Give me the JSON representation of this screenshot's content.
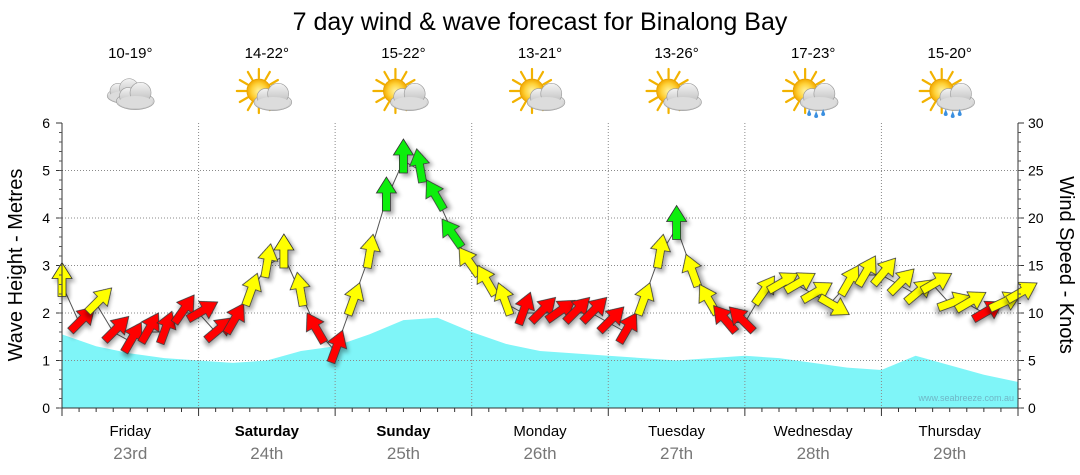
{
  "chart_data": {
    "type": "line",
    "title": "7 day wind & wave forecast for Binalong Bay",
    "y_left_label": "Wave Height - Metres",
    "y_right_label": "Wind Speed - Knots",
    "y_left_range": [
      0,
      6
    ],
    "y_right_range": [
      0,
      30
    ],
    "y_left_ticks": [
      "0",
      "1",
      "2",
      "3",
      "4",
      "5",
      "6"
    ],
    "y_right_ticks": [
      "0",
      "5",
      "10",
      "15",
      "20",
      "25",
      "30"
    ],
    "x_range_hours": [
      0,
      168
    ],
    "grid": true,
    "watermark": "www.seabreeze.com.au",
    "days": [
      {
        "name": "Friday",
        "date": "23rd",
        "temp": "10-19°",
        "icon": "cloudy-icon",
        "bold": false
      },
      {
        "name": "Saturday",
        "date": "24th",
        "temp": "14-22°",
        "icon": "sun-cloud-icon",
        "bold": true
      },
      {
        "name": "Sunday",
        "date": "25th",
        "temp": "15-22°",
        "icon": "sun-cloud-icon",
        "bold": true
      },
      {
        "name": "Monday",
        "date": "26th",
        "temp": "13-21°",
        "icon": "sun-cloud-icon",
        "bold": false
      },
      {
        "name": "Tuesday",
        "date": "27th",
        "temp": "13-26°",
        "icon": "sun-cloud-icon",
        "bold": false
      },
      {
        "name": "Wednesday",
        "date": "28th",
        "temp": "17-23°",
        "icon": "sun-rain-cloud-icon",
        "bold": false
      },
      {
        "name": "Thursday",
        "date": "29th",
        "temp": "15-20°",
        "icon": "sun-rain-cloud-icon",
        "bold": false
      }
    ],
    "wave_series": {
      "name": "Wave Height",
      "color": "#7ff5f8",
      "x_hours": [
        0,
        6,
        12,
        18,
        24,
        30,
        36,
        42,
        48,
        54,
        60,
        66,
        72,
        78,
        84,
        90,
        96,
        102,
        108,
        114,
        120,
        126,
        132,
        138,
        144,
        150,
        156,
        162,
        168
      ],
      "values": [
        1.55,
        1.3,
        1.15,
        1.05,
        1.0,
        0.95,
        1.0,
        1.2,
        1.3,
        1.55,
        1.85,
        1.9,
        1.6,
        1.35,
        1.2,
        1.15,
        1.1,
        1.05,
        1.0,
        1.05,
        1.1,
        1.05,
        0.95,
        0.85,
        0.8,
        1.1,
        0.9,
        0.7,
        0.55
      ]
    },
    "wind_series": {
      "name": "Wind Speed",
      "line_color": "#555555",
      "x_hours": [
        0,
        3,
        6,
        9,
        12,
        15,
        18,
        21,
        24,
        27,
        30,
        33,
        36,
        39,
        42,
        45,
        48,
        51,
        54,
        57,
        60,
        63,
        66,
        69,
        72,
        75,
        78,
        81,
        84,
        87,
        90,
        93,
        96,
        99,
        102,
        105,
        108,
        111,
        114,
        117,
        120,
        123,
        126,
        129,
        132,
        135,
        138,
        141,
        144,
        147,
        150,
        153,
        156,
        159,
        162,
        165,
        168
      ],
      "values": [
        13,
        9,
        11,
        8,
        7,
        8,
        8,
        10,
        10,
        8,
        9,
        12,
        15,
        16,
        12,
        8,
        6,
        11,
        16,
        22,
        26,
        25,
        22,
        18,
        15,
        13,
        11,
        10,
        10,
        10,
        10,
        10,
        9,
        8,
        11,
        16,
        19,
        14,
        11,
        9,
        9,
        12,
        13,
        13,
        12,
        11,
        13,
        14,
        14,
        13,
        12,
        13,
        11,
        11,
        10,
        11,
        12
      ],
      "directions_deg": [
        180,
        225,
        225,
        225,
        210,
        210,
        200,
        215,
        240,
        230,
        210,
        200,
        190,
        180,
        170,
        150,
        200,
        200,
        190,
        180,
        180,
        170,
        150,
        145,
        145,
        150,
        160,
        200,
        225,
        235,
        225,
        225,
        225,
        210,
        200,
        190,
        180,
        160,
        150,
        140,
        135,
        215,
        240,
        240,
        240,
        300,
        210,
        210,
        220,
        225,
        230,
        240,
        250,
        240,
        240,
        245,
        240
      ]
    }
  }
}
